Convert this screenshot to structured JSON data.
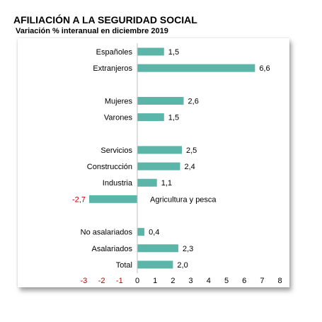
{
  "header": {
    "title": "AFILIACIÓN A LA SEGURIDAD SOCIAL",
    "subtitle": "Variación % interanual en diciembre 2019"
  },
  "chart_data": {
    "type": "bar",
    "orientation": "horizontal",
    "categories": [
      "Españoles",
      "Extranjeros",
      "",
      "Mujeres",
      "Varones",
      "",
      "Servicios",
      "Construcción",
      "Industria",
      "Agricultura y pesca",
      "",
      "No asalariados",
      "Asalariados",
      "Total"
    ],
    "values": [
      1.5,
      6.6,
      null,
      2.6,
      1.5,
      null,
      2.5,
      2.4,
      1.1,
      -2.7,
      null,
      0.4,
      2.3,
      2.0
    ],
    "value_labels": [
      "1,5",
      "6,6",
      "",
      "2,6",
      "1,5",
      "",
      "2,5",
      "2,4",
      "1,1",
      "-2,7",
      "",
      "0,4",
      "2,3",
      "2,0"
    ],
    "xlim": [
      -3,
      8
    ],
    "xticks": [
      -3,
      -2,
      -1,
      0,
      1,
      2,
      3,
      4,
      5,
      6,
      7,
      8
    ],
    "xtick_labels": [
      "-3",
      "-2",
      "-1",
      "0",
      "1",
      "2",
      "3",
      "4",
      "5",
      "6",
      "7",
      "8"
    ],
    "grid": false,
    "bar_color": "#5bb5a9",
    "negative_label_color": "#c00000",
    "axis_color": "#bfbfbf"
  }
}
